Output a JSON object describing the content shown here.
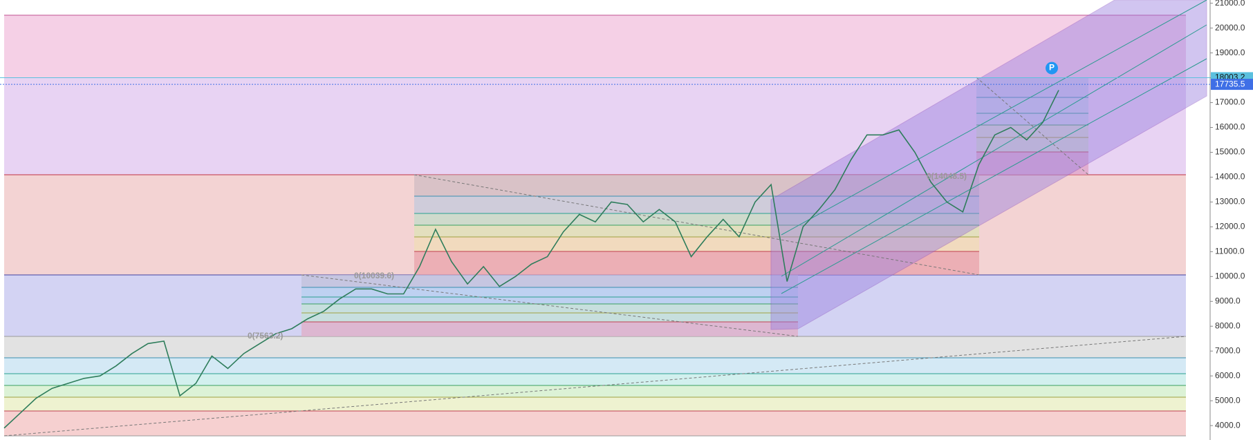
{
  "chart_data": {
    "type": "line",
    "series": [
      {
        "color": "#2e7d5b",
        "values": [
          3900,
          4500,
          5100,
          5500,
          5700,
          5900,
          6000,
          6400,
          6900,
          7300,
          7400,
          5200,
          5700,
          6800,
          6300,
          6900,
          7300,
          7700,
          7900,
          8300,
          8600,
          9100,
          9500,
          9500,
          9300,
          9300,
          10400,
          11900,
          10600,
          9700,
          10400,
          9600,
          10000,
          10500,
          10800,
          11800,
          12500,
          12200,
          13000,
          12900,
          12200,
          12700,
          12200,
          10800,
          11600,
          12300,
          11600,
          13000,
          13700,
          9800,
          12000,
          12700,
          13500,
          14700,
          15700,
          15700,
          15900,
          15000,
          13800,
          13000,
          12600,
          14500,
          15700,
          16000,
          15500,
          16200,
          17500
        ]
      }
    ],
    "ylim": [
      3420,
      21130
    ],
    "yticks": [
      {
        "value": 4000,
        "label": "4000.0"
      },
      {
        "value": 5000,
        "label": "5000.0"
      },
      {
        "value": 6000,
        "label": "6000.0"
      },
      {
        "value": 7000,
        "label": "7000.0"
      },
      {
        "value": 8000,
        "label": "8000.0"
      },
      {
        "value": 9000,
        "label": "9000.0"
      },
      {
        "value": 10000,
        "label": "10000.0"
      },
      {
        "value": 11000,
        "label": "11000.0"
      },
      {
        "value": 12000,
        "label": "12000.0"
      },
      {
        "value": 13000,
        "label": "13000.0"
      },
      {
        "value": 14000,
        "label": "14000.0"
      },
      {
        "value": 15000,
        "label": "15000.0"
      },
      {
        "value": 16000,
        "label": "16000.0"
      },
      {
        "value": 17000,
        "label": "17000.0"
      },
      {
        "value": 18000,
        "label": "18000.0"
      },
      {
        "value": 19000,
        "label": "19000.0"
      },
      {
        "value": 20000,
        "label": "20000.0"
      },
      {
        "value": 21000,
        "label": "21000.0"
      }
    ],
    "price_tags": [
      {
        "value": 18003.2,
        "label": "18003.2",
        "color": "#5bc0de"
      },
      {
        "value": 17735.5,
        "label": "17735.5",
        "color": "#3f6fe6"
      }
    ],
    "annotations": [
      "0(7563.2)",
      "0(10039.6)",
      "0(14048.5)"
    ],
    "marker": "P"
  }
}
